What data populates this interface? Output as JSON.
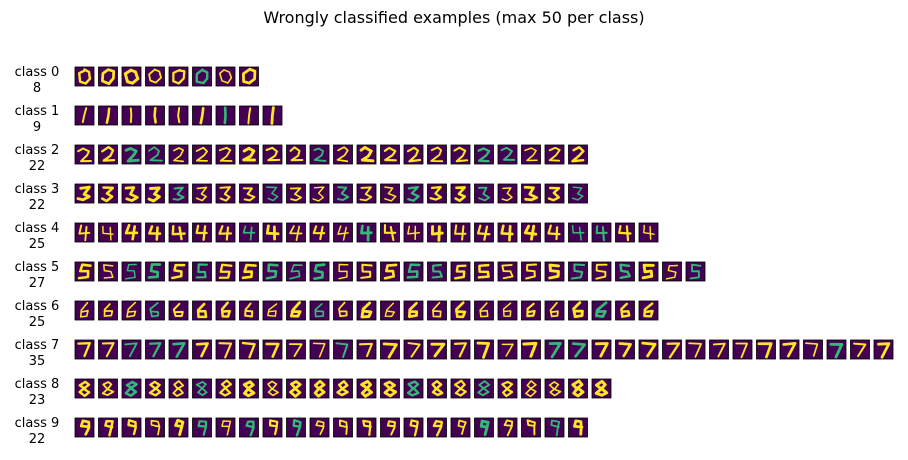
{
  "chart_data": {
    "type": "image_grid",
    "title": "Wrongly classified examples (max 50 per class)",
    "rows": [
      {
        "label": "class 0",
        "count": 8
      },
      {
        "label": "class 1",
        "count": 9
      },
      {
        "label": "class 2",
        "count": 22
      },
      {
        "label": "class 3",
        "count": 22
      },
      {
        "label": "class 4",
        "count": 25
      },
      {
        "label": "class 5",
        "count": 27
      },
      {
        "label": "class 6",
        "count": 25
      },
      {
        "label": "class 7",
        "count": 35
      },
      {
        "label": "class 8",
        "count": 23
      },
      {
        "label": "class 9",
        "count": 22
      }
    ],
    "colors": {
      "background": "#440154",
      "stroke_bright": "#fde725",
      "stroke_mid": "#35b779",
      "frame": "#000000"
    }
  }
}
